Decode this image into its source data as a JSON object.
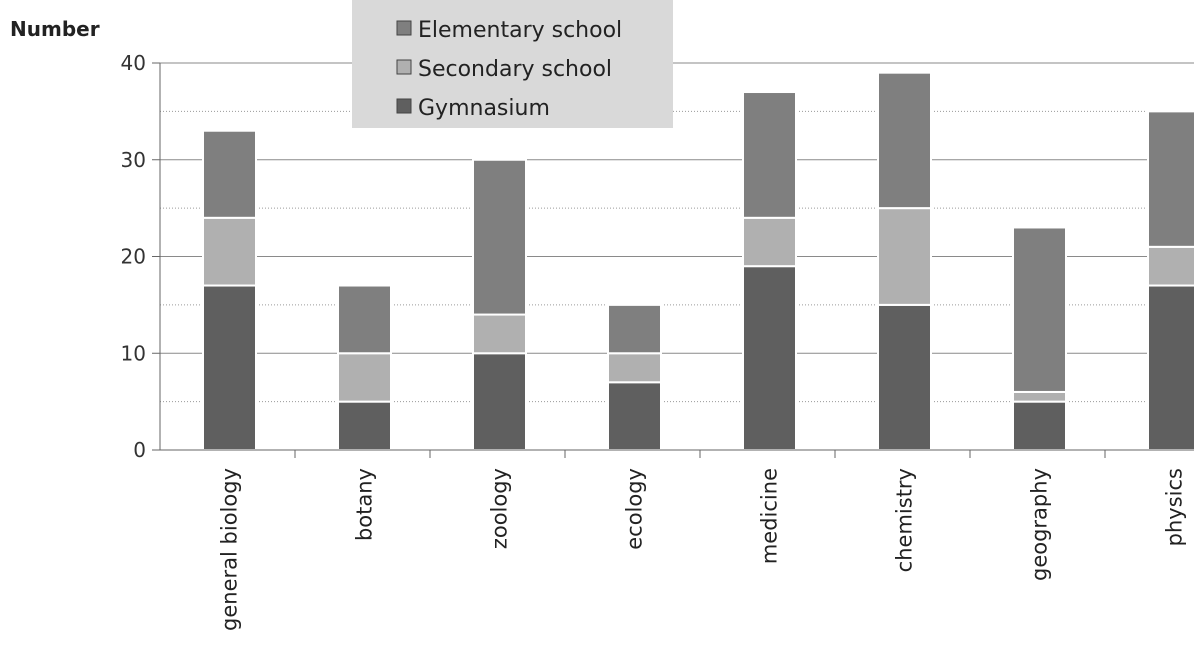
{
  "chart_data": {
    "type": "bar",
    "stacked": true,
    "ylabel": "Number",
    "xlabel": "",
    "ylim": [
      0,
      40
    ],
    "yticks": [
      0,
      10,
      20,
      30,
      40
    ],
    "grid": "horizontal, dotted minor lines at 5s",
    "legend_position": "top-center",
    "categories": [
      "general biology",
      "botany",
      "zoology",
      "ecology",
      "medicine",
      "chemistry",
      "geography",
      "physics"
    ],
    "series": [
      {
        "name": "Gymnasium",
        "color": "#5f5f5f",
        "values": [
          17,
          5,
          10,
          7,
          19,
          15,
          5,
          17
        ]
      },
      {
        "name": "Secondary school",
        "color": "#b0b0b0",
        "values": [
          7,
          5,
          4,
          3,
          5,
          10,
          1,
          4
        ]
      },
      {
        "name": "Elementary school",
        "color": "#7f7f7f",
        "values": [
          9,
          7,
          16,
          5,
          13,
          14,
          17,
          14
        ]
      }
    ],
    "legend_order": [
      "Elementary school",
      "Secondary school",
      "Gymnasium"
    ]
  }
}
